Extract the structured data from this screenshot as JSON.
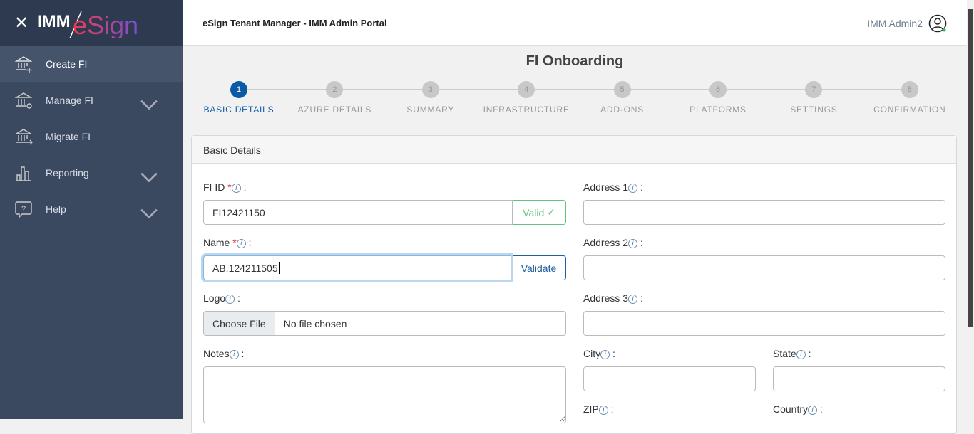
{
  "sidebar": {
    "logo_text": "IMM/eSign",
    "items": [
      {
        "label": "Create FI",
        "icon": "bank-plus-icon",
        "active": true
      },
      {
        "label": "Manage FI",
        "icon": "bank-gear-icon",
        "expandable": true
      },
      {
        "label": "Migrate FI",
        "icon": "bank-arrow-icon"
      },
      {
        "label": "Reporting",
        "icon": "bar-chart-icon",
        "expandable": true
      },
      {
        "label": "Help",
        "icon": "help-bubble-icon",
        "expandable": true
      }
    ]
  },
  "header": {
    "title": "eSign Tenant Manager - IMM Admin Portal",
    "user": "IMM Admin2",
    "status_color": "#2dbd5a"
  },
  "page": {
    "title": "FI Onboarding"
  },
  "steps": [
    {
      "num": "1",
      "label": "BASIC DETAILS"
    },
    {
      "num": "2",
      "label": "AZURE DETAILS"
    },
    {
      "num": "3",
      "label": "SUMMARY"
    },
    {
      "num": "4",
      "label": "INFRASTRUCTURE"
    },
    {
      "num": "5",
      "label": "ADD-ONS"
    },
    {
      "num": "6",
      "label": "PLATFORMS"
    },
    {
      "num": "7",
      "label": "SETTINGS"
    },
    {
      "num": "8",
      "label": "CONFIRMATION"
    }
  ],
  "active_step": 1,
  "form": {
    "section_title": "Basic Details",
    "fi_id": {
      "label": "FI ID",
      "value": "FI12421150",
      "status": "Valid"
    },
    "name": {
      "label": "Name",
      "value": "AB.124211505",
      "button": "Validate"
    },
    "logo": {
      "label": "Logo",
      "button": "Choose File",
      "status": "No file chosen"
    },
    "notes": {
      "label": "Notes"
    },
    "address1": {
      "label": "Address 1"
    },
    "address2": {
      "label": "Address 2"
    },
    "address3": {
      "label": "Address 3"
    },
    "city": {
      "label": "City"
    },
    "state": {
      "label": "State"
    },
    "zip": {
      "label": "ZIP"
    },
    "country": {
      "label": "Country"
    },
    "required_mark": "*",
    "info_glyph": "i",
    "colon": ":"
  },
  "colors": {
    "accent": "#0b5aa5",
    "sidebar": "#3a4860",
    "valid": "#62c37c"
  }
}
